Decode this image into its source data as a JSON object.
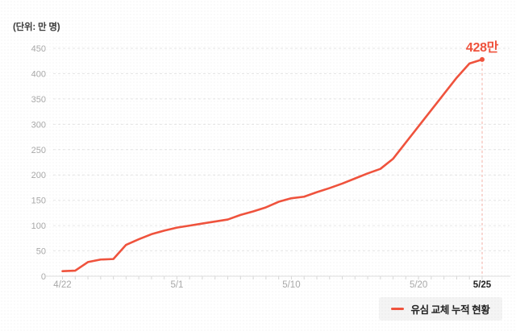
{
  "colors": {
    "line": "#f0523c",
    "grid": "#e6e6e6",
    "axis_line": "#dddddd",
    "tick": "#d8d8d8",
    "axis_text": "#a9a9a9",
    "axis_text_emphasis": "#222222",
    "ink": "#3a3a3a",
    "legend_bg": "#f4f4f4"
  },
  "chart_data": {
    "type": "line",
    "unit_label": "(단위: 만 명)",
    "series_name": "유심 교체 누적 현황",
    "x": [
      "4/22",
      "4/23",
      "4/24",
      "4/25",
      "4/26",
      "4/27",
      "4/28",
      "4/29",
      "4/30",
      "5/1",
      "5/2",
      "5/3",
      "5/4",
      "5/5",
      "5/6",
      "5/7",
      "5/8",
      "5/9",
      "5/10",
      "5/11",
      "5/12",
      "5/13",
      "5/14",
      "5/15",
      "5/16",
      "5/17",
      "5/18",
      "5/19",
      "5/20",
      "5/21",
      "5/22",
      "5/23",
      "5/24",
      "5/25"
    ],
    "values": [
      10,
      11,
      28,
      33,
      34,
      62,
      73,
      83,
      90,
      96,
      100,
      104,
      108,
      112,
      121,
      128,
      136,
      147,
      154,
      157,
      166,
      174,
      183,
      193,
      203,
      212,
      232,
      264,
      296,
      328,
      360,
      392,
      420,
      428
    ],
    "x_tick_labels": [
      "4/22",
      "5/1",
      "5/10",
      "5/20",
      "5/25"
    ],
    "x_tick_emphasis": "5/25",
    "ylim": [
      0,
      450
    ],
    "y_tick_step": 50,
    "grid": "horizontal-dashed",
    "legend_position": "bottom-right",
    "annotation": {
      "text": "428만",
      "x": "5/25",
      "value": 428
    }
  }
}
